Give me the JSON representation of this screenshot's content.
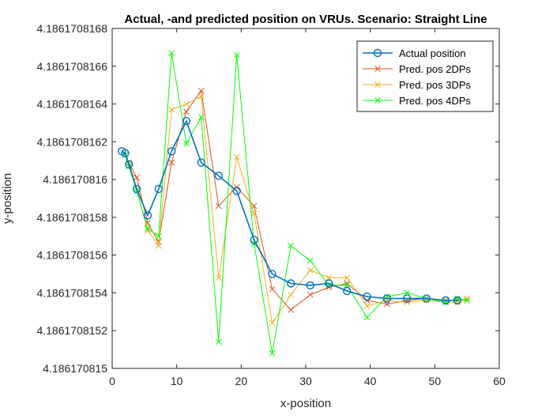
{
  "chart_data": {
    "type": "line",
    "title": "Actual, -and predicted position on VRUs. Scenario: Straight Line",
    "xlabel": "x-position",
    "ylabel": "y-position",
    "xlim": [
      0,
      60
    ],
    "ylim": [
      4.186170815,
      4.1861708168
    ],
    "x_ticks": [
      0,
      10,
      20,
      30,
      40,
      50,
      60
    ],
    "x_tick_labels": [
      "0",
      "10",
      "20",
      "30",
      "40",
      "50",
      "60"
    ],
    "y_ticks": [
      4.186170815,
      4.1861708152,
      4.1861708154,
      4.1861708156,
      4.1861708158,
      4.186170816,
      4.1861708162,
      4.1861708164,
      4.1861708166,
      4.1861708168
    ],
    "y_tick_labels": [
      "4.186170815",
      "4.1861708152",
      "4.1861708154",
      "4.1861708156",
      "4.1861708158",
      "4.186170816",
      "4.1861708162",
      "4.1861708164",
      "4.1861708166",
      "4.1861708168"
    ],
    "grid": false,
    "legend_position": "top-right",
    "series": [
      {
        "name": "Actual position",
        "color": "#0072BD",
        "marker": "circle",
        "x": [
          1.5,
          2.0,
          2.6,
          3.8,
          5.5,
          7.2,
          9.2,
          11.5,
          13.8,
          16.5,
          19.3,
          22.0,
          24.8,
          27.7,
          30.7,
          33.6,
          36.4,
          39.5,
          42.6,
          45.7,
          48.7,
          51.7,
          53.5
        ],
        "y": [
          4.18617081615,
          4.18617081614,
          4.18617081608,
          4.18617081595,
          4.18617081581,
          4.18617081595,
          4.18617081615,
          4.18617081631,
          4.18617081609,
          4.18617081602,
          4.18617081594,
          4.18617081568,
          4.1861708155,
          4.18617081545,
          4.18617081544,
          4.18617081545,
          4.18617081541,
          4.18617081538,
          4.18617081537,
          4.18617081537,
          4.18617081537,
          4.18617081536,
          4.18617081536
        ]
      },
      {
        "name": "Pred. pos 2DPs",
        "color": "#D95319",
        "marker": "x",
        "x": [
          2.0,
          2.6,
          3.8,
          5.5,
          7.2,
          9.2,
          11.5,
          13.8,
          16.5,
          19.3,
          22.0,
          24.8,
          27.7,
          30.7,
          33.6,
          36.4,
          39.5,
          42.6,
          45.7,
          48.7,
          51.7,
          53.5,
          55.0
        ],
        "y": [
          4.18617081613,
          4.18617081609,
          4.18617081601,
          4.18617081577,
          4.18617081567,
          4.18617081609,
          4.18617081636,
          4.18617081647,
          4.18617081586,
          4.18617081596,
          4.18617081586,
          4.18617081542,
          4.18617081531,
          4.18617081539,
          4.18617081543,
          4.18617081545,
          4.18617081536,
          4.18617081534,
          4.18617081536,
          4.18617081537,
          4.18617081536,
          4.18617081536,
          4.18617081536
        ]
      },
      {
        "name": "Pred. pos 3DPs",
        "color": "#EDB120",
        "marker": "x",
        "x": [
          2.0,
          2.6,
          3.8,
          5.5,
          7.2,
          9.2,
          11.5,
          13.8,
          16.5,
          19.3,
          22.0,
          24.8,
          27.7,
          30.7,
          33.6,
          36.4,
          39.5,
          42.6,
          45.7,
          48.7,
          51.7,
          53.5,
          55.0
        ],
        "y": [
          4.18617081613,
          4.18617081609,
          4.18617081595,
          4.18617081573,
          4.18617081565,
          4.18617081637,
          4.1861708164,
          4.18617081644,
          4.18617081548,
          4.18617081612,
          4.18617081582,
          4.18617081524,
          4.18617081539,
          4.18617081552,
          4.18617081548,
          4.18617081548,
          4.18617081533,
          4.18617081536,
          4.18617081535,
          4.18617081536,
          4.18617081535,
          4.18617081535,
          4.18617081537
        ]
      },
      {
        "name": "Pred. pos 4DPs",
        "color": "#00FF00",
        "marker": "x",
        "x": [
          2.0,
          2.6,
          3.8,
          5.5,
          7.2,
          9.2,
          11.5,
          13.8,
          16.5,
          19.3,
          22.0,
          24.8,
          27.7,
          30.7,
          33.6,
          36.4,
          39.5,
          42.6,
          45.7,
          48.7,
          51.7,
          53.5,
          55.0
        ],
        "y": [
          4.18617081613,
          4.18617081607,
          4.18617081594,
          4.18617081574,
          4.1861708157,
          4.18617081667,
          4.18617081619,
          4.18617081633,
          4.18617081514,
          4.18617081666,
          4.18617081566,
          4.18617081508,
          4.18617081565,
          4.18617081557,
          4.18617081544,
          4.18617081544,
          4.18617081527,
          4.18617081538,
          4.1861708154,
          4.18617081537,
          4.18617081535,
          4.18617081537,
          4.18617081536
        ]
      }
    ]
  }
}
